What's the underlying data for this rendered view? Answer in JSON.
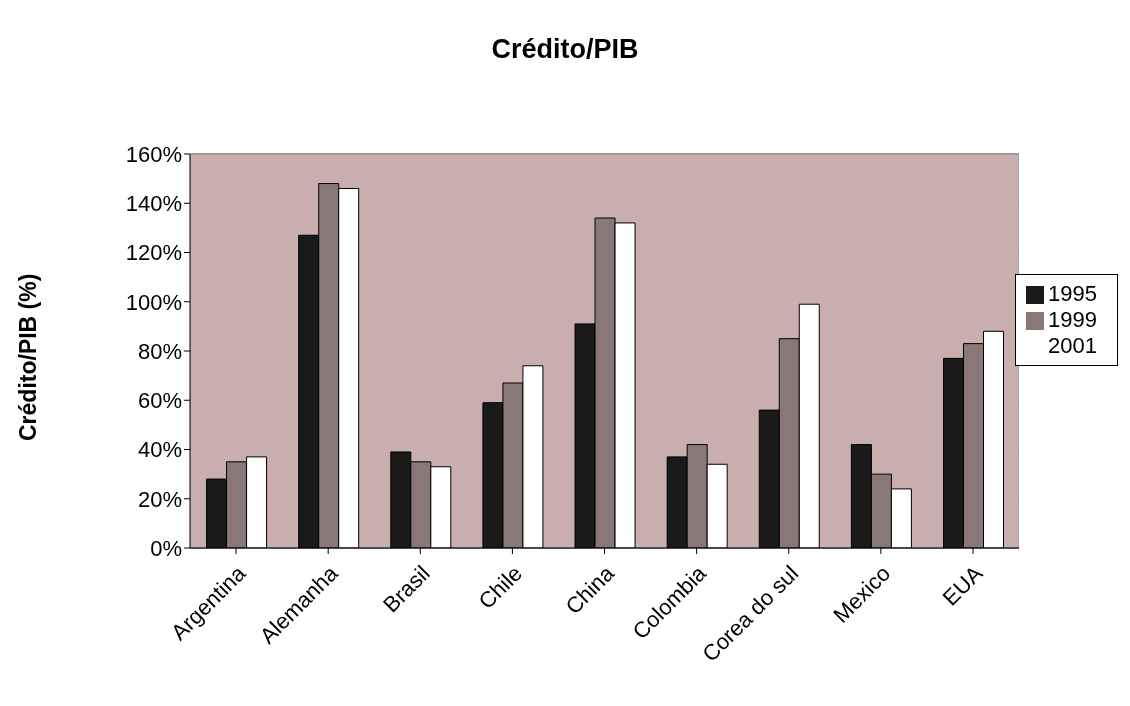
{
  "chart_data": {
    "type": "bar",
    "title": "Crédito/PIB",
    "ylabel": "Crédito/PIB (%)",
    "categories": [
      "Argentina",
      "Alemanha",
      "Brasil",
      "Chile",
      "China",
      "Colombia",
      "Corea do sul",
      "Mexico",
      "EUA"
    ],
    "series": [
      {
        "name": "1995",
        "color": "#1a1a1a",
        "values": [
          28,
          127,
          39,
          59,
          91,
          37,
          56,
          42,
          77
        ]
      },
      {
        "name": "1999",
        "color": "#8a7878",
        "values": [
          35,
          148,
          35,
          67,
          134,
          42,
          85,
          30,
          83
        ]
      },
      {
        "name": "2001",
        "color": "#ffffff",
        "values": [
          37,
          146,
          33,
          74,
          132,
          34,
          99,
          24,
          88
        ]
      }
    ],
    "ylim": [
      0,
      160
    ],
    "yticks": [
      {
        "value": 0,
        "label": "0%"
      },
      {
        "value": 20,
        "label": "20%"
      },
      {
        "value": 40,
        "label": "40%"
      },
      {
        "value": 60,
        "label": "60%"
      },
      {
        "value": 80,
        "label": "80%"
      },
      {
        "value": 100,
        "label": "100%"
      },
      {
        "value": 120,
        "label": "120%"
      },
      {
        "value": 140,
        "label": "140%"
      },
      {
        "value": 160,
        "label": "160%"
      }
    ],
    "grid": "y",
    "legend": "right"
  }
}
